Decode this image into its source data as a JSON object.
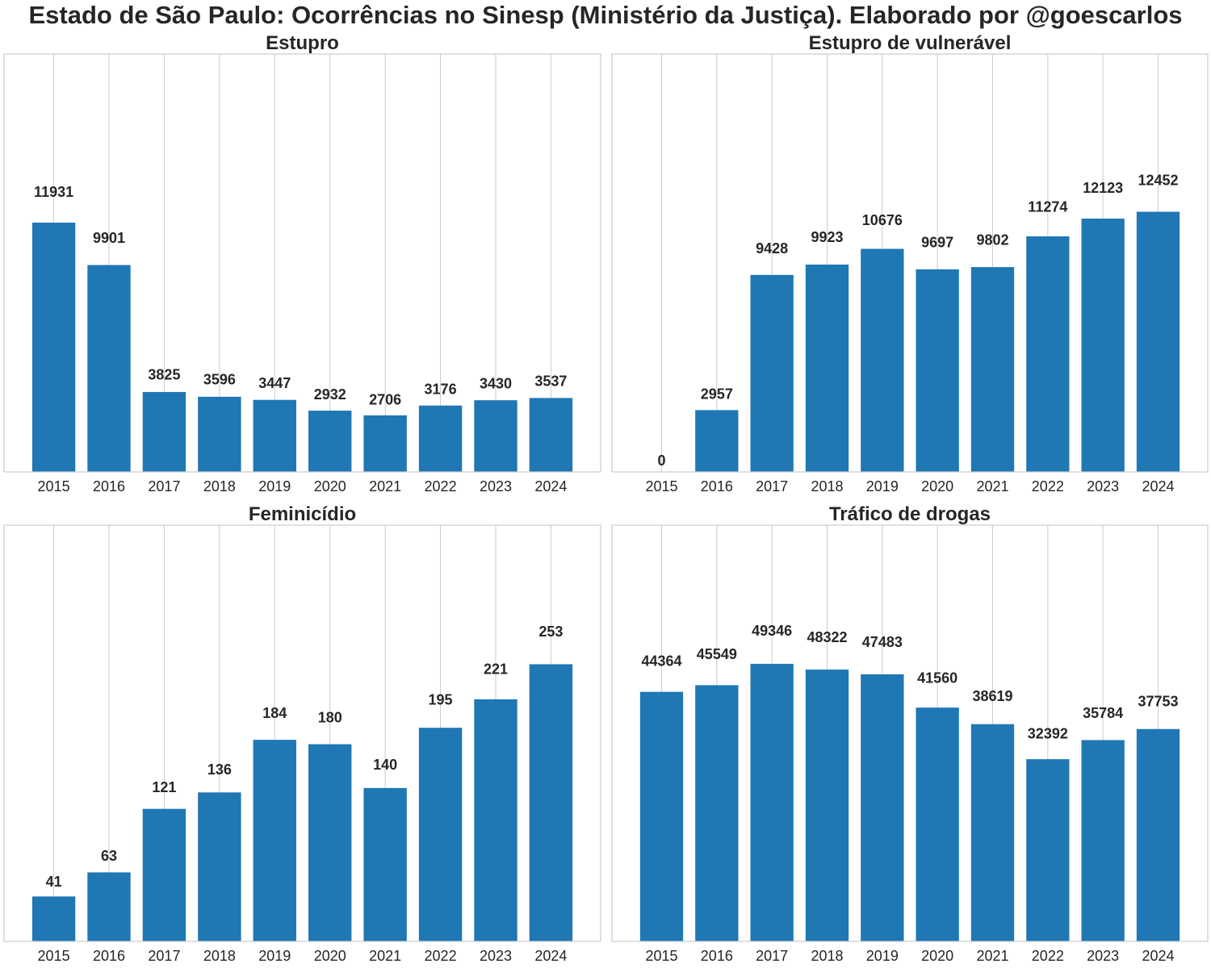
{
  "suptitle": "Estado de São Paulo: Ocorrências no Sinesp (Ministério da Justiça). Elaborado por @goescarlos",
  "colors": {
    "bar": "#1f77b4",
    "grid": "#cccccc",
    "text": "#262626"
  },
  "chart_data": [
    {
      "type": "bar",
      "title": "Estupro",
      "categories": [
        "2015",
        "2016",
        "2017",
        "2018",
        "2019",
        "2020",
        "2021",
        "2022",
        "2023",
        "2024"
      ],
      "values": [
        11931,
        9901,
        3825,
        3596,
        3447,
        2932,
        2706,
        3176,
        3430,
        3537
      ],
      "xlabel": "",
      "ylabel": "",
      "ylim": [
        0,
        20000
      ],
      "grid": "vertical",
      "data_labels": true
    },
    {
      "type": "bar",
      "title": "Estupro de vulnerável",
      "categories": [
        "2015",
        "2016",
        "2017",
        "2018",
        "2019",
        "2020",
        "2021",
        "2022",
        "2023",
        "2024"
      ],
      "values": [
        0,
        2957,
        9428,
        9923,
        10676,
        9697,
        9802,
        11274,
        12123,
        12452
      ],
      "xlabel": "",
      "ylabel": "",
      "ylim": [
        0,
        20000
      ],
      "grid": "vertical",
      "data_labels": true
    },
    {
      "type": "bar",
      "title": "Feminicídio",
      "categories": [
        "2015",
        "2016",
        "2017",
        "2018",
        "2019",
        "2020",
        "2021",
        "2022",
        "2023",
        "2024"
      ],
      "values": [
        41,
        63,
        121,
        136,
        184,
        180,
        140,
        195,
        221,
        253
      ],
      "xlabel": "",
      "ylabel": "",
      "ylim": [
        0,
        380
      ],
      "grid": "vertical",
      "data_labels": true
    },
    {
      "type": "bar",
      "title": "Tráfico de drogas",
      "categories": [
        "2015",
        "2016",
        "2017",
        "2018",
        "2019",
        "2020",
        "2021",
        "2022",
        "2023",
        "2024"
      ],
      "values": [
        44364,
        45549,
        49346,
        48322,
        47483,
        41560,
        38619,
        32392,
        35784,
        37753
      ],
      "xlabel": "",
      "ylabel": "",
      "ylim": [
        0,
        74000
      ],
      "grid": "vertical",
      "data_labels": true
    }
  ]
}
